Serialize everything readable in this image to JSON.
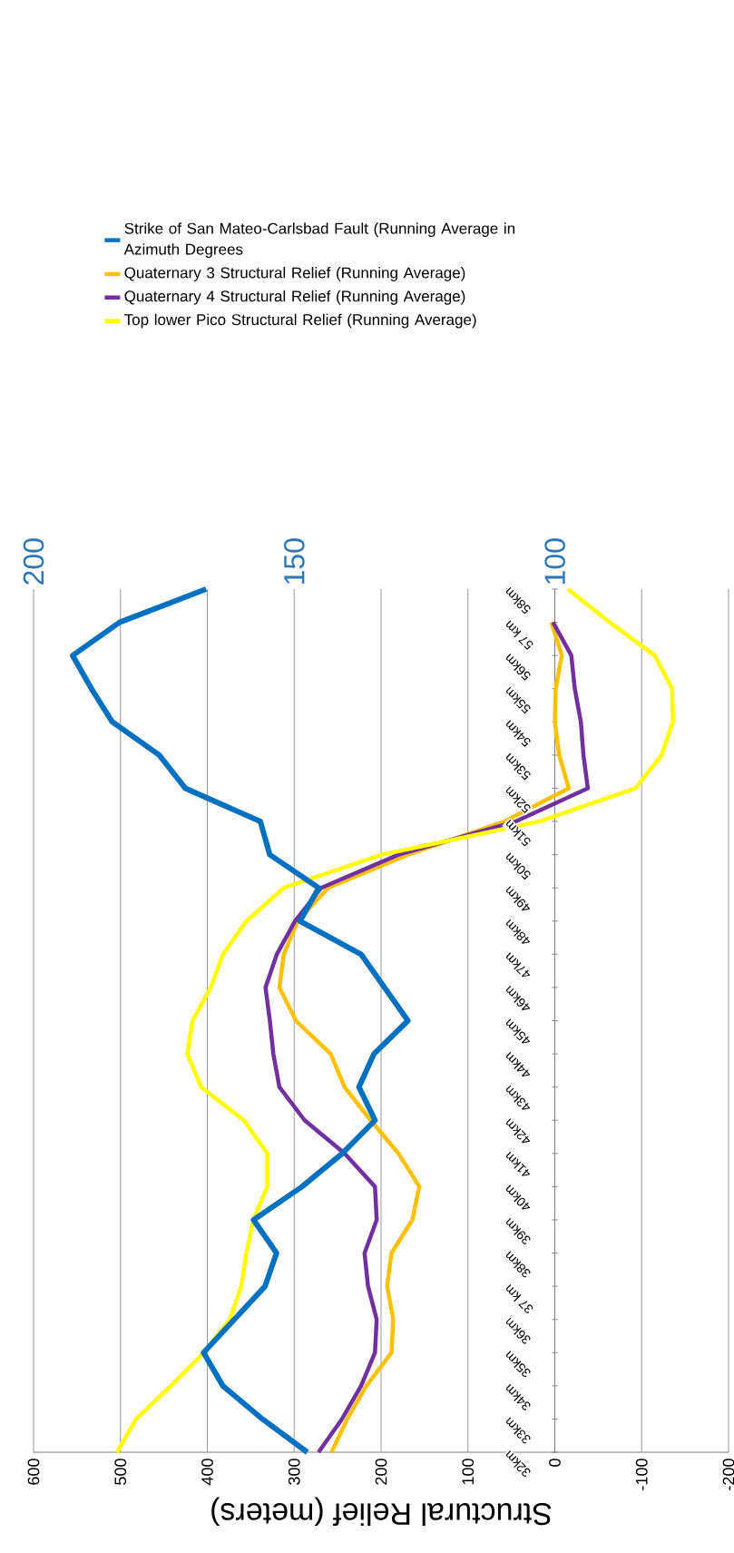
{
  "chart_data": {
    "type": "line",
    "orientation": "horizontal",
    "xlabel": "Structural Relief (meters)",
    "categories": [
      "58km",
      "57 km",
      "56km",
      "55km",
      "54km",
      "53km",
      "52km",
      "51km",
      "50km",
      "49km",
      "48km",
      "47km",
      "46km",
      "45km",
      "44km",
      "43km",
      "42km",
      "41km",
      "40km",
      "39km",
      "38km",
      "37 km",
      "36km",
      "35km",
      "34km",
      "33km",
      "32km"
    ],
    "series": [
      {
        "name": "Strike of San Mateo-Carlsbad Fault (Running Average in Azimuth Degrees",
        "color": "#0070c0",
        "axis": "x2",
        "values": [
          166.9,
          183.5,
          192.5,
          188.9,
          184.9,
          175.9,
          170.9,
          156.5,
          154.7,
          145.3,
          148.9,
          137.2,
          132.7,
          128.2,
          134.7,
          137.6,
          134.5,
          140.8,
          148.5,
          157.8,
          153.4,
          155.6,
          161.5,
          167.4,
          163.7,
          156.1,
          147.5
        ]
      },
      {
        "name": "Quaternary 3 Structural Relief (Running Average)",
        "color": "#ffc000",
        "values": [
          null,
          4,
          -8,
          -1,
          0,
          -5,
          -16,
          58,
          169,
          261,
          296,
          312,
          317,
          298,
          258,
          242,
          212,
          180,
          156,
          164,
          188,
          193,
          186,
          188,
          217,
          239,
          257
        ]
      },
      {
        "name": "Quaternary 4 Structural Relief (Running Average)",
        "color": "#7030a0",
        "values": [
          null,
          2,
          -19,
          -23,
          -30,
          -33,
          -38,
          45,
          180,
          269,
          299,
          320,
          333,
          328,
          324,
          317,
          288,
          242,
          207,
          205,
          219,
          215,
          205,
          207,
          223,
          245,
          272
        ]
      },
      {
        "name": "Top lower Pico Structural Relief (Running Average)",
        "color": "#ffff00",
        "values": [
          -15,
          -63,
          -115,
          -135,
          -136,
          -123,
          -93,
          18,
          199,
          312,
          355,
          382,
          396,
          417,
          423,
          407,
          358,
          331,
          331,
          347,
          355,
          361,
          374,
          404,
          442,
          482,
          504
        ]
      }
    ],
    "xlim": [
      600,
      -200
    ],
    "xticks": [
      600,
      500,
      400,
      300,
      200,
      100,
      0,
      -100,
      -200
    ],
    "x2lim": [
      200,
      66.7
    ],
    "x2ticks": [
      200,
      150,
      100
    ],
    "grid": "x",
    "legend": "top"
  }
}
